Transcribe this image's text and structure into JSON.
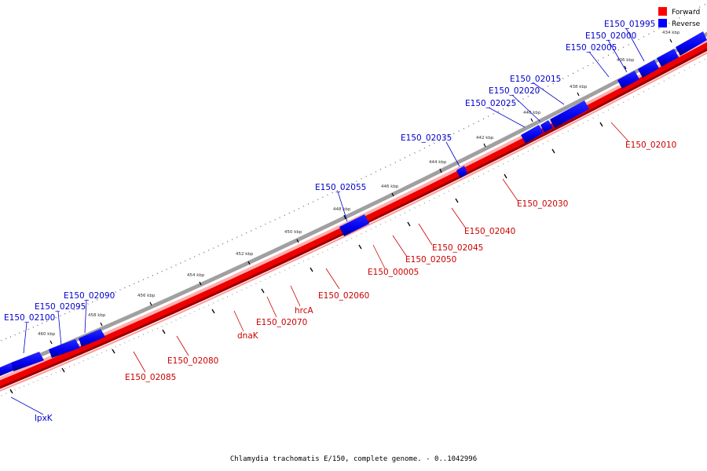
{
  "caption": "Chlamydia trachomatis E/150, complete genome. - 0..1042996",
  "legend": {
    "items": [
      {
        "label": "Forward",
        "color": "#ff0000"
      },
      {
        "label": "Reverse",
        "color": "#0000ff"
      }
    ]
  },
  "colors": {
    "forward_fill": "#ff1a1a",
    "forward_dark": "#b00000",
    "reverse_fill": "#1a1aff",
    "reverse_dark": "#000099",
    "forward_label": "#cc0000",
    "reverse_label": "#0000cc",
    "backbone": "#999999"
  },
  "scale_ticks": [
    "434 kbp",
    "436 kbp",
    "438 kbp",
    "440 kbp",
    "442 kbp",
    "444 kbp",
    "446 kbp",
    "448 kbp",
    "450 kbp",
    "452 kbp",
    "454 kbp",
    "456 kbp",
    "458 kbp",
    "460 kbp"
  ],
  "reverse_genes": [
    "E150_01995",
    "E150_02000",
    "E150_02005",
    "E150_02015",
    "E150_02020",
    "E150_02025",
    "E150_02035",
    "E150_02055",
    "E150_02090",
    "E150_02095",
    "E150_02100",
    "lpxK"
  ],
  "forward_genes": [
    "E150_02010",
    "E150_02030",
    "E150_02040",
    "E150_02045",
    "E150_02050",
    "E150_00005",
    "E150_02060",
    "hrcA",
    "E150_02070",
    "dnaK",
    "E150_02080",
    "E150_02085"
  ]
}
